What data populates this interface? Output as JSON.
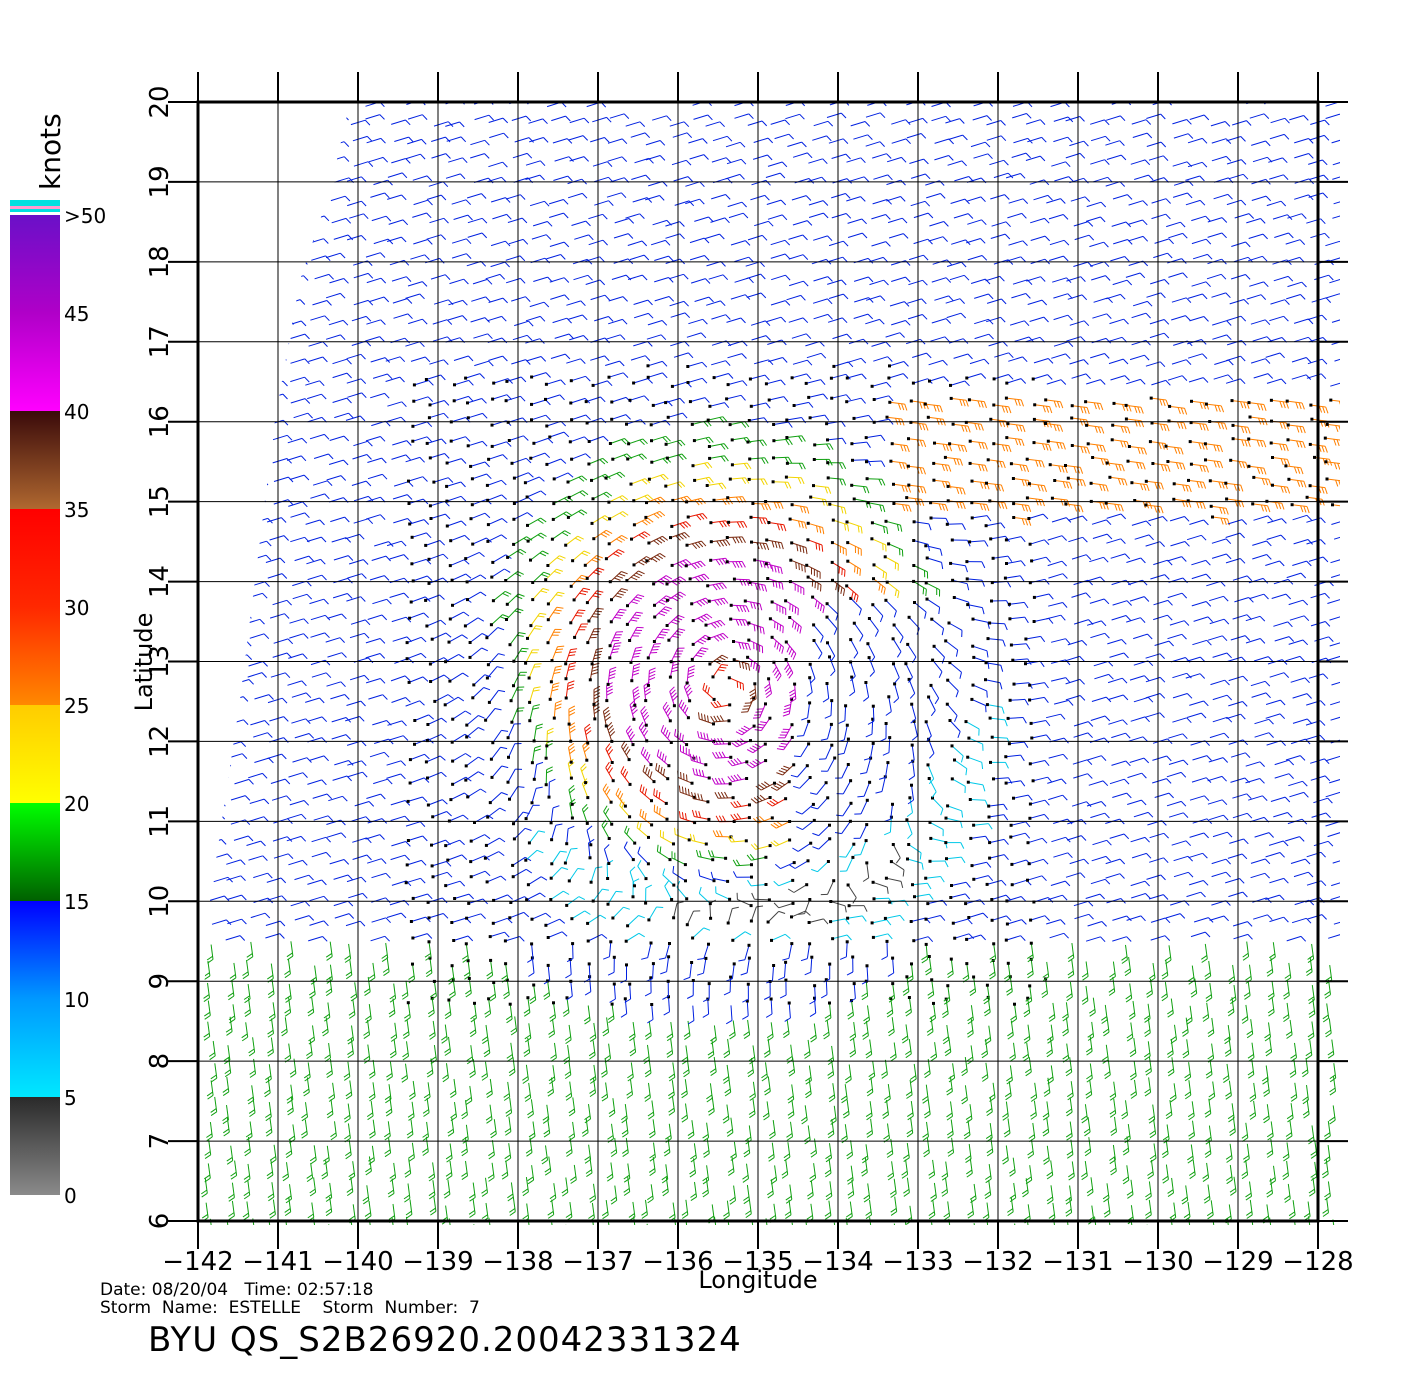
{
  "chart_data": {
    "type": "wind-barb-map",
    "title": "BYU QS_S2B26920.20042331324",
    "xlabel": "Longitude",
    "ylabel": "Latitude",
    "xlim": [
      -142,
      -128
    ],
    "ylim": [
      6,
      20
    ],
    "xticks": [
      -142,
      -141,
      -140,
      -139,
      -138,
      -137,
      -136,
      -135,
      -134,
      -133,
      -132,
      -131,
      -130,
      -129,
      -128
    ],
    "yticks": [
      6,
      7,
      8,
      9,
      10,
      11,
      12,
      13,
      14,
      15,
      16,
      17,
      18,
      19,
      20
    ],
    "grid": true,
    "storm_center": {
      "lon": -135.4,
      "lat": 12.7
    },
    "colorbar": {
      "title": "knots",
      "labels": [
        "0",
        "5",
        "10",
        "15",
        "20",
        "25",
        "30",
        "35",
        "40",
        "45",
        ">50"
      ],
      "stops": [
        {
          "knots": 0,
          "color": "#8a8a8a"
        },
        {
          "knots": 5,
          "color": "#2a2a2a"
        },
        {
          "knots": 5,
          "color": "#00e8ff"
        },
        {
          "knots": 10,
          "color": "#0099ff"
        },
        {
          "knots": 15,
          "color": "#0000ff"
        },
        {
          "knots": 15,
          "color": "#006000"
        },
        {
          "knots": 20,
          "color": "#00ff00"
        },
        {
          "knots": 20,
          "color": "#ffff00"
        },
        {
          "knots": 25,
          "color": "#ffcc00"
        },
        {
          "knots": 25,
          "color": "#ff8800"
        },
        {
          "knots": 30,
          "color": "#ff2800"
        },
        {
          "knots": 35,
          "color": "#ff0000"
        },
        {
          "knots": 35,
          "color": "#b06830"
        },
        {
          "knots": 40,
          "color": "#3a0a0a"
        },
        {
          "knots": 40,
          "color": "#ff00ff"
        },
        {
          "knots": 45,
          "color": "#b000c8"
        },
        {
          "knots": 50,
          "color": "#6a10c8"
        }
      ]
    }
  },
  "info": {
    "date_line": "Date: 08/20/04   Time: 02:57:18",
    "storm_line": "Storm  Name:  ESTELLE    Storm  Number:  7"
  }
}
